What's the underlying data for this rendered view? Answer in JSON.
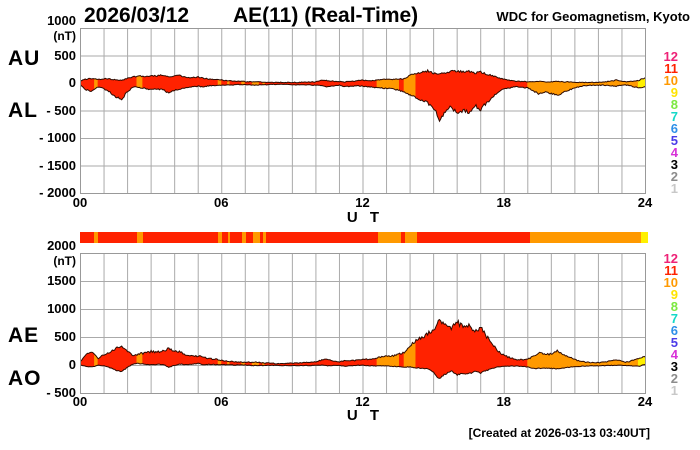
{
  "header": {
    "date": "2026/03/12",
    "title": "AE(11) (Real-Time)",
    "org": "WDC for Geomagnetism, Kyoto"
  },
  "footer": {
    "created": "[Created at 2026-03-13 03:40UT]"
  },
  "axis": {
    "x_label": "U T",
    "x_ticks": [
      {
        "h": 0,
        "label": "00"
      },
      {
        "h": 6,
        "label": "06"
      },
      {
        "h": 12,
        "label": "12"
      },
      {
        "h": 18,
        "label": "18"
      },
      {
        "h": 24,
        "label": "24"
      }
    ]
  },
  "palette": {
    "red": "#FF2200",
    "orange": "#FF9900",
    "yellow": "#FFF000",
    "outline": "#2E0A00",
    "grid": "#AAAAAA",
    "frame": "#999999",
    "text": "#000000",
    "bg": "#FFFFFF"
  },
  "station_scale": [
    {
      "n": "12",
      "color": "#EE2277"
    },
    {
      "n": "11",
      "color": "#FF2200"
    },
    {
      "n": "10",
      "color": "#FF9900"
    },
    {
      "n": "9",
      "color": "#FFE400"
    },
    {
      "n": "8",
      "color": "#7BE840"
    },
    {
      "n": "7",
      "color": "#14D8C8"
    },
    {
      "n": "6",
      "color": "#2E8FE8"
    },
    {
      "n": "5",
      "color": "#4A3BE8"
    },
    {
      "n": "4",
      "color": "#D831D8"
    },
    {
      "n": "3",
      "color": "#000000"
    },
    {
      "n": "2",
      "color": "#8C8C8C"
    },
    {
      "n": "1",
      "color": "#C8C8C8"
    }
  ],
  "activity_segments": [
    {
      "start": 0,
      "end": 0.6,
      "level": "red"
    },
    {
      "start": 0.6,
      "end": 0.75,
      "level": "orange"
    },
    {
      "start": 0.75,
      "end": 2.4,
      "level": "red"
    },
    {
      "start": 2.4,
      "end": 2.65,
      "level": "orange"
    },
    {
      "start": 2.65,
      "end": 5.85,
      "level": "red"
    },
    {
      "start": 5.85,
      "end": 6.0,
      "level": "orange"
    },
    {
      "start": 6.0,
      "end": 6.25,
      "level": "red"
    },
    {
      "start": 6.25,
      "end": 6.35,
      "level": "orange"
    },
    {
      "start": 6.35,
      "end": 6.85,
      "level": "red"
    },
    {
      "start": 6.85,
      "end": 7.0,
      "level": "orange"
    },
    {
      "start": 7.0,
      "end": 7.3,
      "level": "red"
    },
    {
      "start": 7.3,
      "end": 7.6,
      "level": "orange"
    },
    {
      "start": 7.6,
      "end": 7.75,
      "level": "red"
    },
    {
      "start": 7.75,
      "end": 7.85,
      "level": "orange"
    },
    {
      "start": 7.85,
      "end": 12.6,
      "level": "red"
    },
    {
      "start": 12.6,
      "end": 13.55,
      "level": "orange"
    },
    {
      "start": 13.55,
      "end": 13.75,
      "level": "red"
    },
    {
      "start": 13.75,
      "end": 14.25,
      "level": "orange"
    },
    {
      "start": 14.25,
      "end": 19.0,
      "level": "red"
    },
    {
      "start": 19.0,
      "end": 23.7,
      "level": "orange"
    },
    {
      "start": 23.7,
      "end": 24.0,
      "level": "yellow"
    }
  ],
  "chart_data": [
    {
      "type": "area",
      "name": "AU / AL panel",
      "unit": "(nT)",
      "ylim": [
        -2000,
        1000
      ],
      "xlim_hours": [
        0,
        24
      ],
      "grid_step_hours": 1,
      "left_labels": [
        "AU",
        "AL"
      ],
      "yticks": [
        {
          "v": 1000,
          "label": "1000"
        },
        {
          "v": 500,
          "label": "500"
        },
        {
          "v": 0,
          "label": "0"
        },
        {
          "v": -500,
          "label": "- 500"
        },
        {
          "v": -1000,
          "label": "- 1000"
        },
        {
          "v": -1500,
          "label": "- 1500"
        },
        {
          "v": -2000,
          "label": "- 2000"
        }
      ],
      "series": [
        {
          "name": "AU",
          "start": 0,
          "step": 0.25,
          "values": [
            50,
            80,
            90,
            70,
            90,
            80,
            70,
            60,
            90,
            120,
            140,
            130,
            140,
            140,
            150,
            120,
            130,
            150,
            100,
            110,
            120,
            90,
            80,
            70,
            60,
            50,
            45,
            40,
            35,
            30,
            30,
            25,
            25,
            20,
            20,
            20,
            20,
            20,
            25,
            25,
            30,
            60,
            50,
            40,
            35,
            30,
            40,
            50,
            60,
            50,
            55,
            70,
            80,
            70,
            80,
            90,
            150,
            180,
            200,
            230,
            190,
            170,
            200,
            220,
            230,
            210,
            220,
            190,
            210,
            170,
            140,
            100,
            80,
            60,
            40,
            35,
            30,
            30,
            40,
            30,
            30,
            40,
            30,
            30,
            25,
            20,
            20,
            20,
            20,
            30,
            40,
            60,
            40,
            30,
            40,
            60,
            110
          ]
        },
        {
          "name": "AL",
          "start": 0,
          "step": 0.25,
          "values": [
            -30,
            -120,
            -140,
            -60,
            -100,
            -160,
            -240,
            -280,
            -150,
            -60,
            -70,
            -90,
            -110,
            -100,
            -110,
            -180,
            -120,
            -100,
            -70,
            -60,
            -50,
            -60,
            -40,
            -40,
            -30,
            -25,
            -25,
            -20,
            -20,
            -30,
            -30,
            -25,
            -20,
            -15,
            -15,
            -20,
            -20,
            -25,
            -25,
            -30,
            -30,
            -40,
            -60,
            -40,
            -30,
            -60,
            -50,
            -40,
            -50,
            -60,
            -70,
            -80,
            -90,
            -100,
            -120,
            -150,
            -200,
            -260,
            -300,
            -350,
            -450,
            -650,
            -500,
            -420,
            -560,
            -480,
            -520,
            -400,
            -470,
            -350,
            -250,
            -150,
            -100,
            -80,
            -60,
            -70,
            -80,
            -140,
            -190,
            -160,
            -180,
            -220,
            -160,
            -120,
            -80,
            -50,
            -40,
            -30,
            -30,
            -30,
            -40,
            -50,
            -30,
            -30,
            -60,
            -80,
            -60
          ]
        }
      ]
    },
    {
      "type": "area",
      "name": "AE / AO panel",
      "unit": "(nT)",
      "ylim": [
        -500,
        2000
      ],
      "xlim_hours": [
        0,
        24
      ],
      "grid_step_hours": 1,
      "left_labels": [
        "AE",
        "AO"
      ],
      "yticks": [
        {
          "v": 2000,
          "label": "2000"
        },
        {
          "v": 1500,
          "label": "1500"
        },
        {
          "v": 1000,
          "label": "1000"
        },
        {
          "v": 500,
          "label": "500"
        },
        {
          "v": 0,
          "label": "0"
        },
        {
          "v": -500,
          "label": "- 500"
        }
      ],
      "series": [
        {
          "name": "AE",
          "start": 0,
          "step": 0.25,
          "values": [
            80,
            200,
            230,
            130,
            190,
            240,
            310,
            340,
            240,
            180,
            210,
            220,
            250,
            240,
            260,
            300,
            250,
            250,
            170,
            170,
            170,
            150,
            120,
            110,
            90,
            75,
            70,
            60,
            55,
            60,
            60,
            50,
            45,
            35,
            35,
            40,
            40,
            45,
            50,
            55,
            60,
            100,
            110,
            80,
            65,
            90,
            90,
            90,
            110,
            110,
            125,
            150,
            170,
            170,
            200,
            240,
            350,
            440,
            500,
            580,
            640,
            820,
            700,
            640,
            790,
            690,
            740,
            590,
            680,
            520,
            390,
            250,
            180,
            140,
            100,
            105,
            110,
            170,
            230,
            190,
            210,
            260,
            190,
            150,
            105,
            70,
            60,
            50,
            50,
            60,
            80,
            110,
            70,
            60,
            100,
            140,
            170
          ]
        },
        {
          "name": "AO",
          "start": 0,
          "step": 0.25,
          "values": [
            10,
            -20,
            -25,
            5,
            -5,
            -40,
            -85,
            -110,
            -30,
            30,
            35,
            20,
            15,
            20,
            20,
            -30,
            5,
            25,
            15,
            25,
            35,
            15,
            20,
            15,
            15,
            12,
            10,
            10,
            8,
            0,
            0,
            0,
            2,
            2,
            2,
            0,
            0,
            -2,
            0,
            -2,
            0,
            10,
            -5,
            0,
            2,
            -15,
            -5,
            5,
            5,
            -5,
            -8,
            -5,
            -5,
            -15,
            -20,
            -30,
            -25,
            -40,
            -50,
            -60,
            -130,
            -240,
            -150,
            -100,
            -165,
            -135,
            -150,
            -105,
            -130,
            -90,
            -55,
            -25,
            -10,
            -10,
            -10,
            -18,
            -25,
            -55,
            -50,
            -45,
            -50,
            -60,
            -45,
            -35,
            -20,
            -15,
            -10,
            -5,
            -5,
            0,
            0,
            5,
            5,
            0,
            -10,
            -10,
            25
          ]
        }
      ]
    }
  ]
}
